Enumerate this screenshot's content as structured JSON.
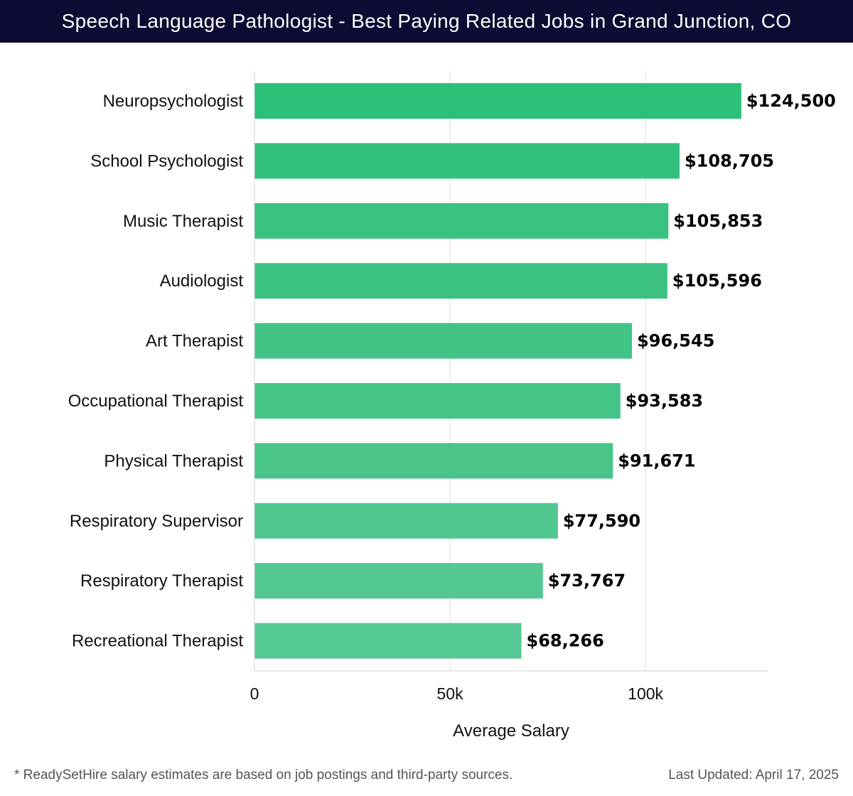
{
  "header": {
    "title": "Speech Language Pathologist - Best Paying Related Jobs in Grand Junction, CO"
  },
  "chart_data": {
    "type": "bar",
    "orientation": "horizontal",
    "categories": [
      "Neuropsychologist",
      "School Psychologist",
      "Music Therapist",
      "Audiologist",
      "Art Therapist",
      "Occupational Therapist",
      "Physical Therapist",
      "Respiratory Supervisor",
      "Respiratory Therapist",
      "Recreational Therapist"
    ],
    "values": [
      124500,
      108705,
      105853,
      105596,
      96545,
      93583,
      91671,
      77590,
      73767,
      68266
    ],
    "value_labels": [
      "$124,500",
      "$108,705",
      "$105,853",
      "$105,596",
      "$96,545",
      "$93,583",
      "$91,671",
      "$77,590",
      "$73,767",
      "$68,266"
    ],
    "xlabel": "Average Salary",
    "ylabel": "",
    "xlim": [
      0,
      131250
    ],
    "xticks": [
      0,
      50000,
      100000
    ],
    "xtick_labels": [
      "0",
      "50k",
      "100k"
    ],
    "grid": "vertical",
    "legend": "none",
    "bar_colors": [
      "#2cbf78",
      "#33c07c",
      "#38c17f",
      "#3bc281",
      "#41c385",
      "#45c488",
      "#49c58a",
      "#4fc78f",
      "#53c892",
      "#57c995"
    ]
  },
  "footer": {
    "note": "* ReadySetHire salary estimates are based on job postings and third-party sources.",
    "updated": "Last Updated: April 17, 2025"
  }
}
